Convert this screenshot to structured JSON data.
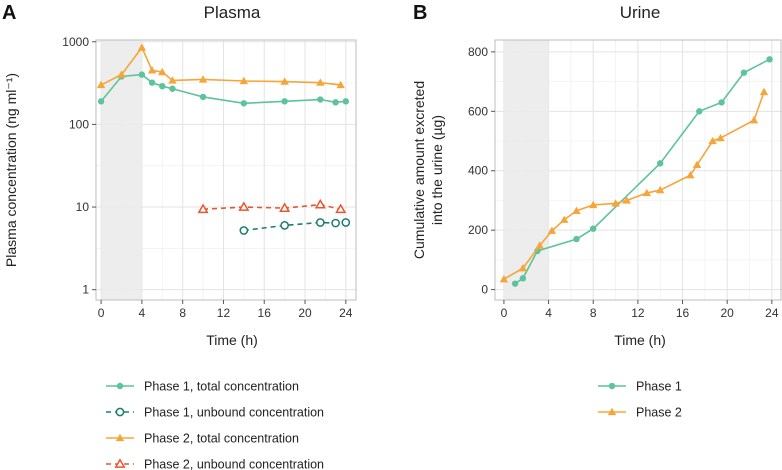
{
  "panels": {
    "left_letter": "A",
    "right_letter": "B"
  },
  "colors": {
    "phase1_total": "#5dc39a",
    "phase1_unbound": "#1e7d6e",
    "phase2_total": "#f5a53a",
    "phase2_unbound": "#e8542e",
    "shade": "#ebebeb",
    "grid": "#e3e3e3",
    "border": "#bdbdbd"
  },
  "chart_data": [
    {
      "type": "line",
      "title": "Plasma",
      "xlabel": "Time (h)",
      "ylabel": "Plasma concentration (ng ml⁻¹)",
      "yscale": "log",
      "xlim": [
        -0.5,
        25
      ],
      "ylim": [
        0.75,
        1050
      ],
      "xticks": [
        0,
        4,
        8,
        12,
        16,
        20,
        24
      ],
      "yticks": [
        1,
        10,
        100,
        1000
      ],
      "ytick_labels": [
        "1",
        "10",
        "100",
        "1000"
      ],
      "shaded_region": [
        0,
        4
      ],
      "series": [
        {
          "name": "Phase 1, total concentration",
          "key": "phase1_total",
          "marker": "circle",
          "style": "solid",
          "x": [
            0,
            2,
            4,
            5,
            6,
            7,
            10,
            14,
            18,
            21.5,
            23,
            24
          ],
          "y": [
            190,
            380,
            400,
            320,
            290,
            270,
            215,
            180,
            190,
            200,
            185,
            190
          ]
        },
        {
          "name": "Phase 1, unbound concentration",
          "key": "phase1_unbound",
          "marker": "open-circle",
          "style": "dashed",
          "x": [
            14,
            18,
            21.5,
            23,
            24
          ],
          "y": [
            5.2,
            6.0,
            6.5,
            6.4,
            6.5
          ]
        },
        {
          "name": "Phase 2, total concentration",
          "key": "phase2_total",
          "marker": "triangle",
          "style": "solid",
          "x": [
            0,
            2,
            4,
            5,
            6,
            7,
            10,
            14,
            18,
            21.5,
            23.5
          ],
          "y": [
            300,
            400,
            850,
            450,
            430,
            340,
            350,
            335,
            330,
            320,
            300
          ]
        },
        {
          "name": "Phase 2, unbound concentration",
          "key": "phase2_unbound",
          "marker": "open-triangle",
          "style": "dashed",
          "x": [
            10,
            14,
            18,
            21.5,
            23.5
          ],
          "y": [
            9.4,
            10.0,
            9.7,
            10.7,
            9.4
          ]
        }
      ]
    },
    {
      "type": "line",
      "title": "Urine",
      "xlabel": "Time (h)",
      "ylabel_line1": "Cumulative amount excreted",
      "ylabel_line2": "into the urine (µg)",
      "xlim": [
        -0.8,
        25
      ],
      "ylim": [
        -35,
        840
      ],
      "xticks": [
        0,
        4,
        8,
        12,
        16,
        20,
        24
      ],
      "yticks": [
        0,
        200,
        400,
        600,
        800
      ],
      "shaded_region": [
        0,
        4
      ],
      "series": [
        {
          "name": "Phase 1",
          "key": "phase1_total",
          "marker": "circle",
          "style": "solid",
          "x": [
            1,
            1.7,
            3,
            6.5,
            8,
            14,
            17.5,
            19.5,
            21.5,
            23.8
          ],
          "y": [
            20,
            38,
            130,
            170,
            205,
            425,
            600,
            630,
            730,
            775
          ]
        },
        {
          "name": "Phase 2",
          "key": "phase2_total",
          "marker": "triangle",
          "style": "solid",
          "x": [
            0,
            1.7,
            3.2,
            4.3,
            5.4,
            6.5,
            8,
            10,
            11,
            12.8,
            14,
            16.7,
            17.3,
            18.7,
            19.4,
            22.4,
            23.3
          ],
          "y": [
            35,
            72,
            148,
            198,
            235,
            265,
            285,
            290,
            300,
            325,
            335,
            385,
            420,
            500,
            510,
            570,
            665
          ]
        }
      ]
    }
  ]
}
